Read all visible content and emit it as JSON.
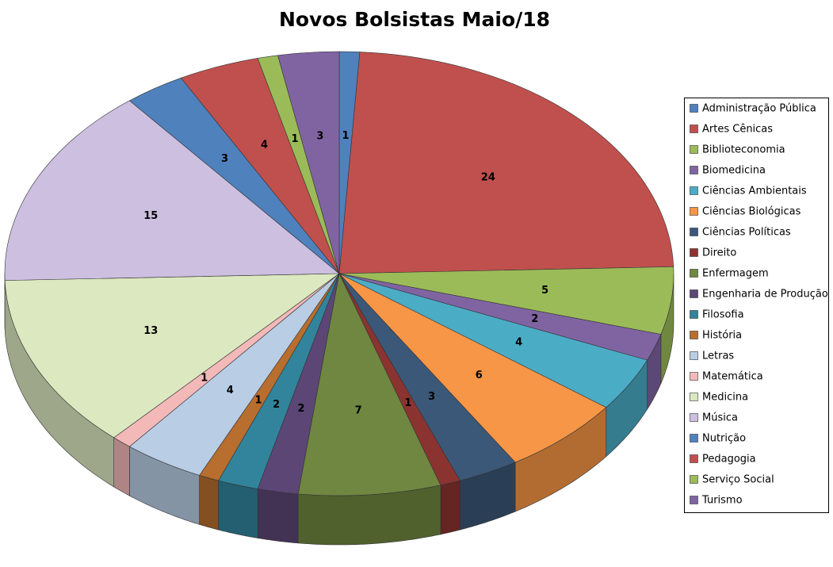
{
  "chart_data": {
    "type": "pie",
    "title": "Novos Bolsistas Maio/18",
    "categories": [
      "Administração Pública",
      "Artes Cênicas",
      "Biblioteconomia",
      "Biomedicina",
      "Ciências Ambientais",
      "Ciências Biológicas",
      "Ciências Políticas",
      "Direito",
      "Enfermagem",
      "Engenharia de Produção",
      "Filosofia",
      "História",
      "Letras",
      "Matemática",
      "Medicina",
      "Música",
      "Nutrição",
      "Pedagogia",
      "Serviço Social",
      "Turismo"
    ],
    "values": [
      1,
      24,
      5,
      2,
      4,
      6,
      3,
      1,
      7,
      2,
      2,
      1,
      4,
      1,
      13,
      15,
      3,
      4,
      1,
      3
    ],
    "colors": [
      "#4f81bd",
      "#c0504d",
      "#9bbb59",
      "#8064a2",
      "#4bacc6",
      "#f79646",
      "#3b5878",
      "#8b3331",
      "#6f8740",
      "#5b4675",
      "#31849b",
      "#b76e2e",
      "#b9cde5",
      "#f2b9b8",
      "#dbe8c0",
      "#cdbfe0",
      "#4f81bd",
      "#c0504d",
      "#9bbb59",
      "#8064a2"
    ],
    "legend": "right"
  }
}
